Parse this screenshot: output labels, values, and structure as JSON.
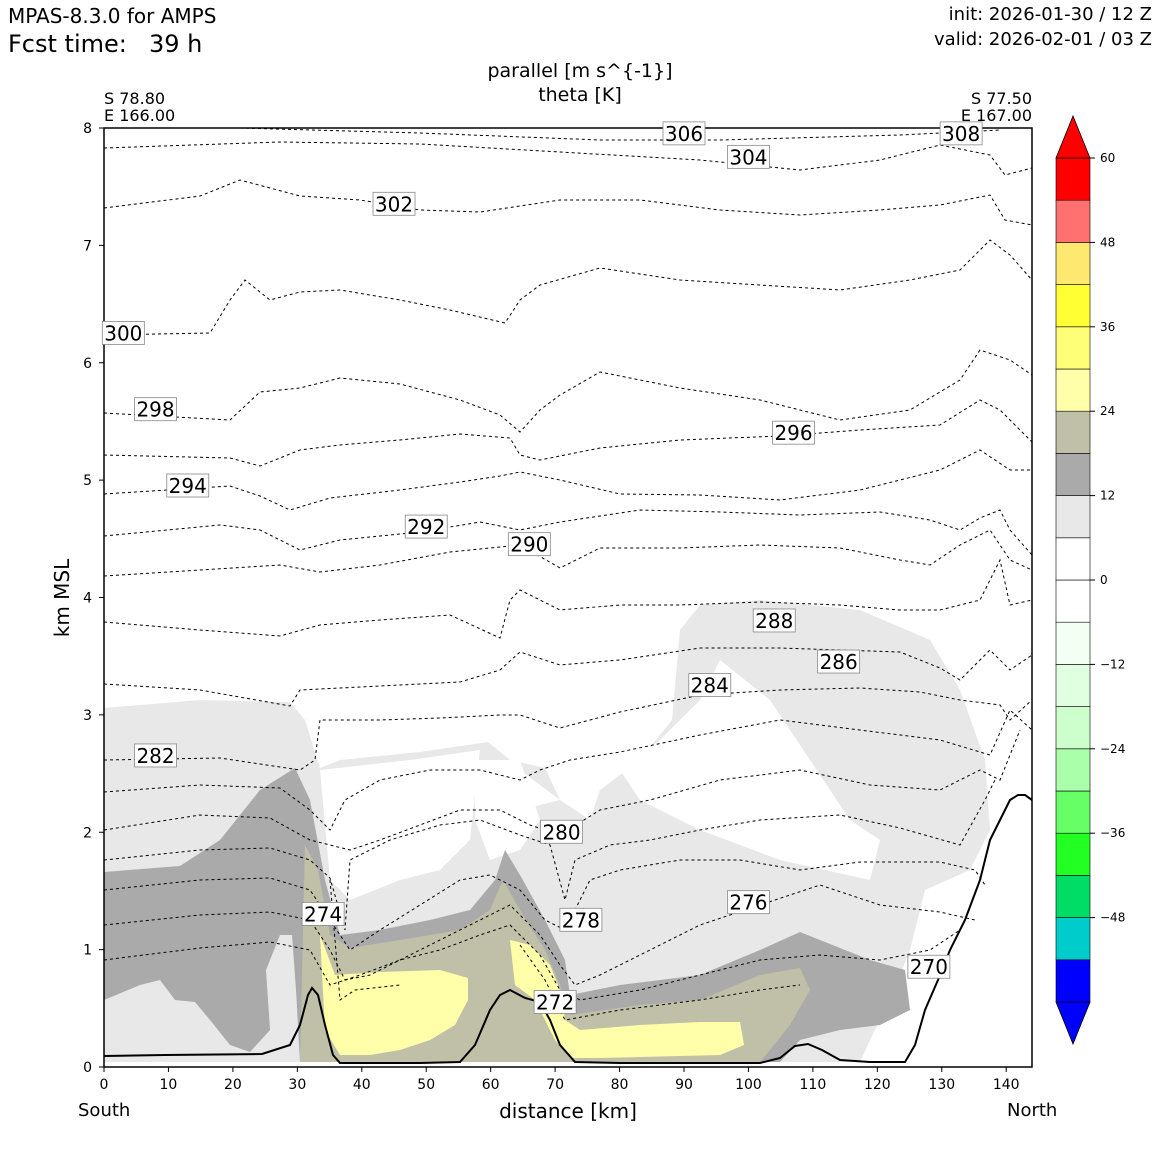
{
  "header": {
    "model": "MPAS-8.3.0 for AMPS",
    "fcst_label": "Fcst time:",
    "fcst_value": "39 h",
    "init": "init: 2026-01-30 / 12 Z",
    "valid": "valid: 2026-02-01 / 03 Z"
  },
  "endpoints": {
    "left_lat": "S 78.80",
    "left_lon": "E 166.00",
    "right_lat": "S 77.50",
    "right_lon": "E 167.00",
    "left_dir": "South",
    "right_dir": "North"
  },
  "chart_data": {
    "type": "cross-section",
    "title": "parallel [m s^{-1}]",
    "subtitle": "theta [K]",
    "xlabel": "distance [km]",
    "ylabel": "km MSL",
    "xlim": [
      0,
      144
    ],
    "ylim": [
      0,
      8
    ],
    "xticks": [
      "0",
      "10",
      "20",
      "30",
      "40",
      "50",
      "60",
      "70",
      "80",
      "90",
      "100",
      "110",
      "120",
      "130",
      "140"
    ],
    "yticks": [
      "0",
      "1",
      "2",
      "3",
      "4",
      "5",
      "6",
      "7",
      "8"
    ],
    "theta_contours": [
      {
        "level": 270,
        "x": 128,
        "y": 0.85
      },
      {
        "level": 272,
        "x": 70,
        "y": 0.55
      },
      {
        "level": 274,
        "x": 34,
        "y": 1.3
      },
      {
        "level": 276,
        "x": 100,
        "y": 1.4
      },
      {
        "level": 278,
        "x": 74,
        "y": 1.25
      },
      {
        "level": 280,
        "x": 71,
        "y": 2.0
      },
      {
        "level": 282,
        "x": 8,
        "y": 2.65
      },
      {
        "level": 284,
        "x": 94,
        "y": 3.25
      },
      {
        "level": 286,
        "x": 114,
        "y": 3.45
      },
      {
        "level": 288,
        "x": 104,
        "y": 3.8
      },
      {
        "level": 290,
        "x": 66,
        "y": 4.45
      },
      {
        "level": 292,
        "x": 50,
        "y": 4.6
      },
      {
        "level": 294,
        "x": 13,
        "y": 4.95
      },
      {
        "level": 296,
        "x": 107,
        "y": 5.4
      },
      {
        "level": 298,
        "x": 8,
        "y": 5.6
      },
      {
        "level": 300,
        "x": 3,
        "y": 6.25
      },
      {
        "level": 302,
        "x": 45,
        "y": 7.35
      },
      {
        "level": 304,
        "x": 100,
        "y": 7.75
      },
      {
        "level": 306,
        "x": 90,
        "y": 7.95
      },
      {
        "level": 308,
        "x": 133,
        "y": 7.95
      }
    ],
    "colorbar": {
      "ticks": [
        "60",
        "48",
        "36",
        "24",
        "12",
        "0",
        "−12",
        "−24",
        "−36",
        "−48"
      ],
      "bounds": [
        -60,
        -54,
        -48,
        -42,
        -36,
        -30,
        -24,
        -18,
        -12,
        -6,
        0,
        6,
        12,
        18,
        24,
        30,
        36,
        42,
        48,
        54,
        60
      ],
      "colors": [
        "#0000ff",
        "#00cccc",
        "#00dd66",
        "#22ff22",
        "#66ff66",
        "#aaffaa",
        "#ccffcc",
        "#e0ffe0",
        "#f4fff4",
        "#ffffff",
        "#ffffff",
        "#e8e8e8",
        "#aaaaaa",
        "#c0c0a8",
        "#ffffaa",
        "#ffff77",
        "#ffff33",
        "#ffe870",
        "#ff7070",
        "#ff0000"
      ],
      "extend_min_color": "#0000ff",
      "extend_max_color": "#ff0000"
    }
  }
}
